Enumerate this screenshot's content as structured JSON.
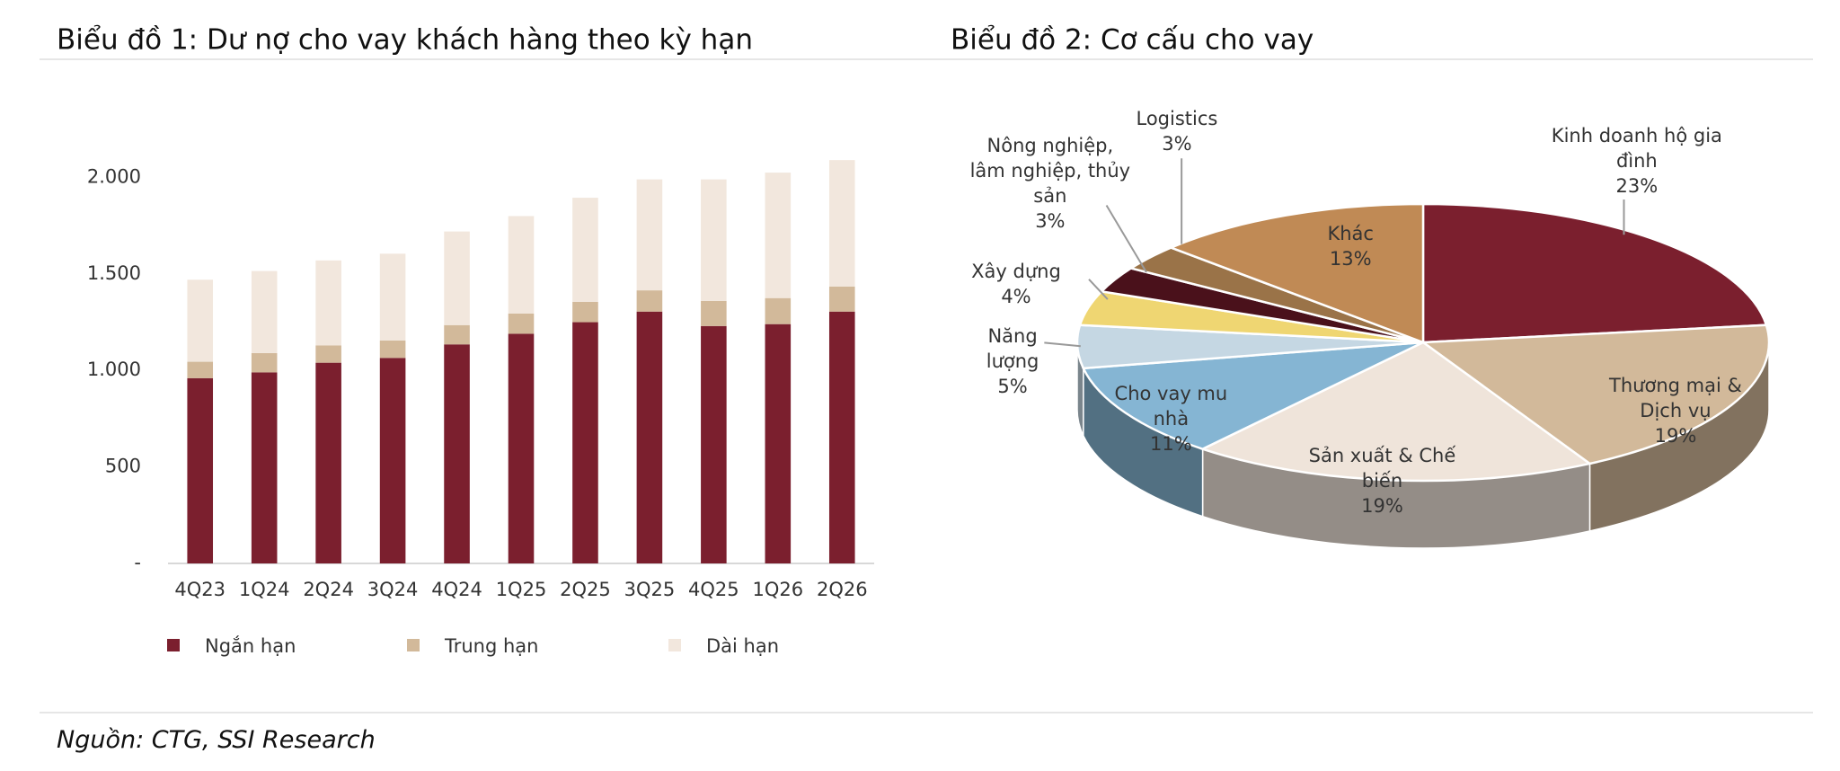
{
  "source": "Nguồn: CTG, SSI Research",
  "chart_data": [
    {
      "type": "bar",
      "title": "Biểu đồ 1: Dư nợ cho vay khách hàng theo kỳ hạn",
      "categories": [
        "4Q23",
        "1Q24",
        "2Q24",
        "3Q24",
        "4Q24",
        "1Q25",
        "2Q25",
        "3Q25",
        "4Q25",
        "1Q26",
        "2Q26"
      ],
      "series": [
        {
          "name": "Ngắn hạn",
          "color": "#7b1f2e",
          "values": [
            960,
            990,
            1040,
            1065,
            1135,
            1190,
            1250,
            1305,
            1230,
            1240,
            1305
          ]
        },
        {
          "name": "Trung hạn",
          "color": "#d2b99a",
          "values": [
            85,
            100,
            90,
            90,
            100,
            105,
            105,
            110,
            130,
            135,
            130
          ]
        },
        {
          "name": "Dài hạn",
          "color": "#f2e7dd",
          "values": [
            425,
            425,
            440,
            450,
            485,
            505,
            540,
            575,
            630,
            650,
            655
          ]
        }
      ],
      "stacked": true,
      "ylim": [
        0,
        2100
      ],
      "yticks": [
        {
          "value": 0,
          "label": "-"
        },
        500,
        {
          "value": 1000,
          "label": "1.000"
        },
        {
          "value": 1500,
          "label": "1.500"
        },
        {
          "value": 2000,
          "label": "2.000"
        }
      ],
      "grid": false
    },
    {
      "type": "pie",
      "title": "Biểu đồ 2: Cơ cấu cho vay",
      "categories": [
        "Kinh doanh hộ gia đình",
        "Thương mại & Dịch vụ",
        "Sản xuất & Chế biến",
        "Cho vay mu nhà",
        "Năng lượng",
        "Xây dựng",
        "Nông nghiệp, lâm nghiệp, thủy sản",
        "Logistics",
        "Khác"
      ],
      "values": [
        23,
        19,
        19,
        11,
        5,
        4,
        3,
        3,
        13
      ],
      "value_labels": [
        "23%",
        "19%",
        "19%",
        "11%",
        "5%",
        "4%",
        "3%",
        "3%",
        "13%"
      ],
      "colors": [
        "#7b1f2e",
        "#d2b99a",
        "#efe4da",
        "#85b5d3",
        "#c5d7e3",
        "#efd672",
        "#4a111b",
        "#9a7348",
        "#c08a55"
      ]
    }
  ]
}
